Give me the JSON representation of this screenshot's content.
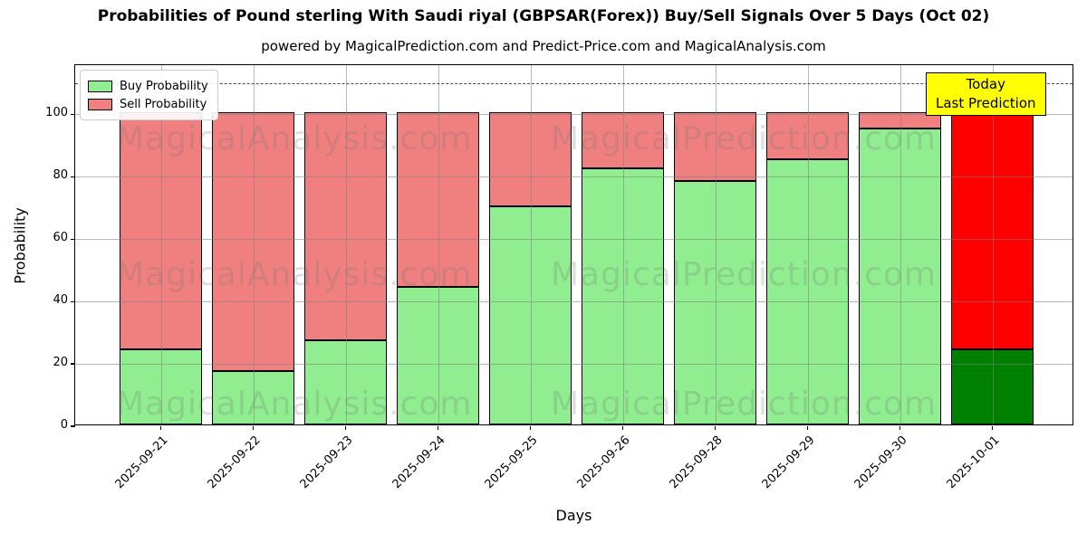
{
  "title": "Probabilities of Pound sterling With Saudi riyal (GBPSAR(Forex)) Buy/Sell Signals Over 5 Days (Oct 02)",
  "subtitle": "powered by MagicalPrediction.com and Predict-Price.com and MagicalAnalysis.com",
  "chart_data": {
    "type": "bar",
    "stacked": true,
    "title": "Probabilities of Pound sterling With Saudi riyal (GBPSAR(Forex)) Buy/Sell Signals Over 5 Days (Oct 02)",
    "xlabel": "Days",
    "ylabel": "Probability",
    "categories": [
      "2025-09-21",
      "2025-09-22",
      "2025-09-23",
      "2025-09-24",
      "2025-09-25",
      "2025-09-26",
      "2025-09-28",
      "2025-09-29",
      "2025-09-30",
      "2025-10-01"
    ],
    "series": [
      {
        "name": "Buy Probability",
        "color": "#90EE90",
        "values": [
          24,
          17,
          27,
          44,
          70,
          82,
          78,
          85,
          95,
          24
        ]
      },
      {
        "name": "Sell Probability",
        "color": "#F08080",
        "values": [
          76,
          83,
          73,
          56,
          30,
          18,
          22,
          15,
          5,
          76
        ]
      }
    ],
    "today_bar": {
      "category": "2025-10-01",
      "buy_color": "#008000",
      "sell_color": "#FF0000"
    },
    "yticks": [
      0,
      20,
      40,
      60,
      80,
      100
    ],
    "ylim": [
      0,
      115.8
    ],
    "dashed_line_y": 110,
    "grid": true,
    "legend_position": "upper left",
    "bar_edge_color": "#000000"
  },
  "legend": {
    "items": [
      {
        "label": "Buy Probability",
        "color": "#90EE90"
      },
      {
        "label": "Sell Probability",
        "color": "#F08080"
      }
    ]
  },
  "annotation": {
    "line1": "Today",
    "line2": "Last Prediction",
    "bg_color": "#FFFF00"
  },
  "watermarks": {
    "left": "MagicalAnalysis.com",
    "right": "MagicalPrediction.com"
  }
}
